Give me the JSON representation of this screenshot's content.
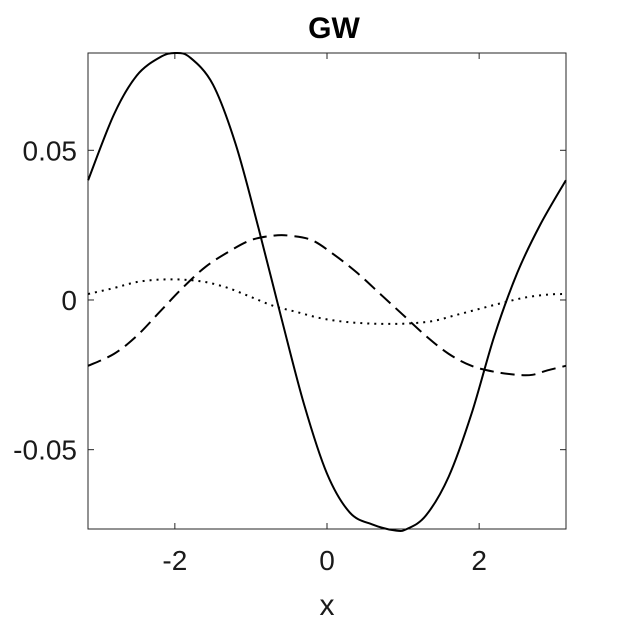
{
  "chart_data": {
    "type": "line",
    "title": "GW",
    "xlabel": "x",
    "ylabel": "",
    "xlim": [
      -3.1416,
      3.1416
    ],
    "ylim": [
      -0.0765,
      0.0825
    ],
    "xticks": [
      -2,
      0,
      2
    ],
    "xtick_labels": [
      "-2",
      "0",
      "2"
    ],
    "yticks": [
      -0.05,
      0,
      0.05
    ],
    "ytick_labels": [
      "-0.05",
      "0",
      "0.05"
    ],
    "grid": false,
    "series": [
      {
        "style": "solid",
        "color": "#000000",
        "x": [
          -3.14,
          -2.8,
          -2.5,
          -2.2,
          -2.0,
          -1.8,
          -1.5,
          -1.2,
          -0.9,
          -0.6,
          -0.3,
          0.0,
          0.3,
          0.6,
          0.9,
          1.05,
          1.3,
          1.6,
          1.9,
          2.2,
          2.5,
          2.8,
          3.14
        ],
        "y": [
          0.04,
          0.062,
          0.075,
          0.081,
          0.0825,
          0.081,
          0.072,
          0.052,
          0.024,
          -0.006,
          -0.035,
          -0.058,
          -0.071,
          -0.075,
          -0.077,
          -0.0765,
          -0.072,
          -0.059,
          -0.038,
          -0.012,
          0.009,
          0.025,
          0.04
        ]
      },
      {
        "style": "dashed",
        "color": "#000000",
        "x": [
          -3.14,
          -2.8,
          -2.5,
          -2.2,
          -1.9,
          -1.6,
          -1.3,
          -1.0,
          -0.7,
          -0.5,
          -0.2,
          0.1,
          0.4,
          0.7,
          1.0,
          1.3,
          1.6,
          1.9,
          2.2,
          2.5,
          2.7,
          2.9,
          3.14
        ],
        "y": [
          -0.022,
          -0.018,
          -0.012,
          -0.004,
          0.004,
          0.011,
          0.016,
          0.02,
          0.0215,
          0.0215,
          0.02,
          0.015,
          0.009,
          0.002,
          -0.005,
          -0.012,
          -0.018,
          -0.022,
          -0.024,
          -0.025,
          -0.025,
          -0.0235,
          -0.022
        ]
      },
      {
        "style": "dotted",
        "color": "#000000",
        "x": [
          -3.14,
          -2.8,
          -2.5,
          -2.2,
          -1.9,
          -1.6,
          -1.3,
          -1.0,
          -0.7,
          -0.4,
          -0.1,
          0.2,
          0.5,
          0.8,
          1.1,
          1.4,
          1.7,
          2.0,
          2.3,
          2.6,
          2.9,
          3.14
        ],
        "y": [
          0.002,
          0.004,
          0.006,
          0.0068,
          0.0068,
          0.006,
          0.004,
          0.001,
          -0.002,
          -0.004,
          -0.006,
          -0.0072,
          -0.0078,
          -0.008,
          -0.0078,
          -0.007,
          -0.005,
          -0.003,
          -0.001,
          0.0008,
          0.0018,
          0.002
        ]
      }
    ]
  }
}
